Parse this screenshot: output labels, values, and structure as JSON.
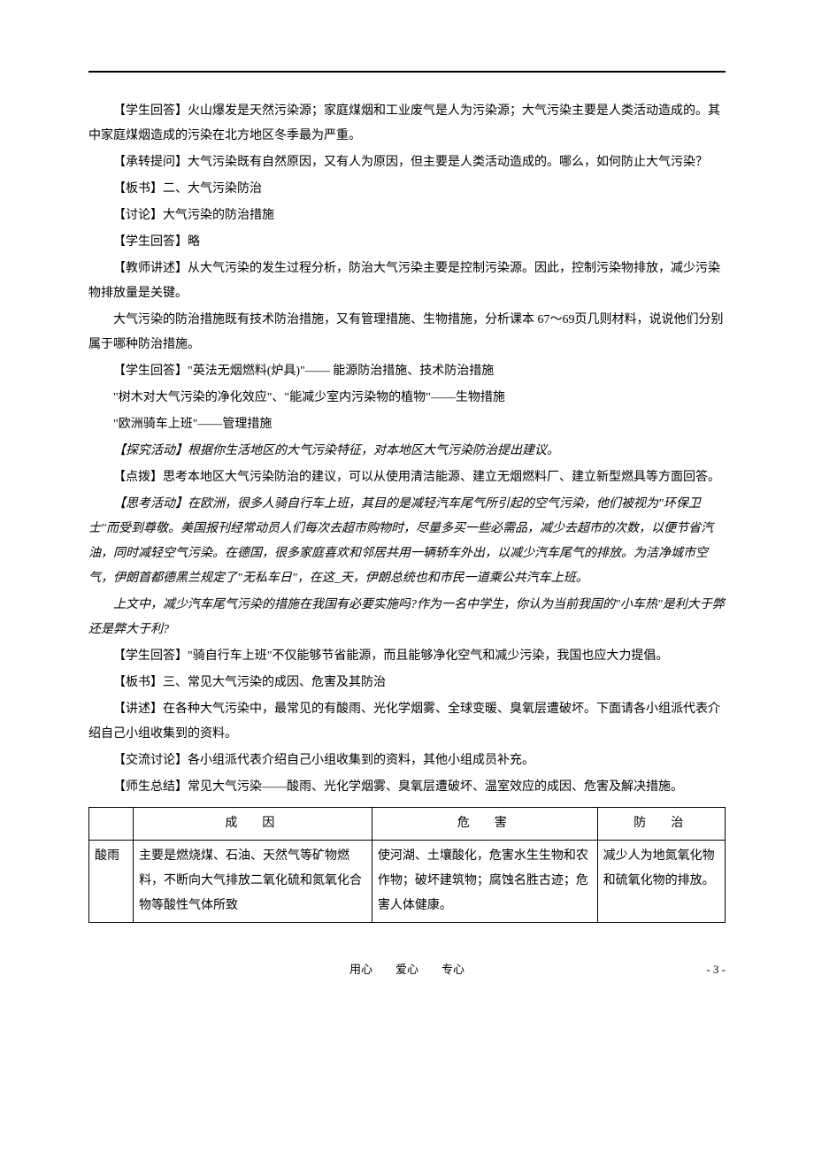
{
  "paragraphs": [
    {
      "text": "【学生回答】火山爆发是天然污染源；家庭煤烟和工业废气是人为污染源；大气污染主要是人类活动造成的。其中家庭煤烟造成的污染在北方地区冬季最为严重。",
      "indent": true
    },
    {
      "text": "【承转提问】大气污染既有自然原因，又有人为原因，但主要是人类活动造成的。哪么，如何防止大气污染？",
      "indent": true
    },
    {
      "text": "【板书】二、大气污染防治",
      "indent": true
    },
    {
      "text": "【讨论】大气污染的防治措施",
      "indent": true
    },
    {
      "text": "【学生回答】略",
      "indent": true
    },
    {
      "text": "【教师讲述】从大气污染的发生过程分析，防治大气污染主要是控制污染源。因此，控制污染物排放，减少污染物排放量是关键。",
      "indent": true
    },
    {
      "text": "大气污染的防治措施既有技术防治措施，又有管理措施、生物措施，分析课本 67～69页几则材料，说说他们分别属于哪种防治措施。",
      "indent": true
    },
    {
      "text": "【学生回答】\"英法无烟燃料(炉具)\"—— 能源防治措施、技术防治措施",
      "indent": true
    },
    {
      "text": "\"树木对大气污染的净化效应\"、\"能减少室内污染物的植物\"——生物措施",
      "indent": true
    },
    {
      "text": "\"欧洲骑车上班\"——管理措施",
      "indent": true
    },
    {
      "text": "【探究活动】根据你生活地区的大气污染特征，对本地区大气污染防治提出建议。",
      "indent": true,
      "italic": true
    },
    {
      "text": "【点拨】思考本地区大气污染防治的建议，可以从使用清洁能源、建立无烟燃料厂、建立新型燃具等方面回答。",
      "indent": true
    },
    {
      "text": "【思考活动】在欧洲，很多人骑自行车上班，其目的是减轻汽车尾气所引起的空气污染，他们被视为\"环保卫士''而受到尊敬。美国报刊经常动员人们每次去超市购物时，尽量多买一些必需品，减少去超市的次数，以便节省汽油，同时减轻空气污染。在德国，很多家庭喜欢和邻居共用一辆轿车外出，以减少汽车尾气的排放。为洁净城市空气，伊朗首都德黑兰规定了\"无私车日\"，在这_天，伊朗总统也和市民一道乘公共汽车上班。",
      "indent": true,
      "italic": true
    },
    {
      "text": "上文中，减少汽车尾气污染的措施在我国有必要实施吗?作为一名中学生，你认为当前我国的\"小车热\"是利大于弊还是弊大于利?",
      "indent": true,
      "italic": true
    },
    {
      "text": "【学生回答】\"骑自行车上班\"不仅能够节省能源，而且能够净化空气和减少污染，我国也应大力提倡。",
      "indent": true
    },
    {
      "text": "【板书】三、常见大气污染的成因、危害及其防治",
      "indent": true
    },
    {
      "text": "【讲述】在各种大气污染中，最常见的有酸雨、光化学烟雾、全球变暖、臭氧层遭破坏。下面请各小组派代表介绍自己小组收集到的资料。",
      "indent": true
    },
    {
      "text": "【交流讨论】各小组派代表介绍自己小组收集到的资料，其他小组成员补充。",
      "indent": true
    },
    {
      "text": "【师生总结】常见大气污染——酸雨、光化学烟雾、臭氧层遭破坏、温室效应的成因、危害及解决措施。",
      "indent": true
    }
  ],
  "table": {
    "headers": [
      "",
      "成因",
      "危害",
      "防治"
    ],
    "rows": [
      {
        "label": "酸雨",
        "cause": "主要是燃烧煤、石油、天然气等矿物燃料，不断向大气排放二氧化硫和氮氧化合物等酸性气体所致",
        "harm": "使河湖、土壤酸化，危害水生生物和农作物；破坏建筑物；腐蚀名胜古迹；危害人体健康。",
        "prevent": "减少人为地氮氧化物和硫氧化物的排放。"
      }
    ]
  },
  "footer": {
    "center": "用心　　爱心　　专心",
    "page": "- 3 -"
  }
}
